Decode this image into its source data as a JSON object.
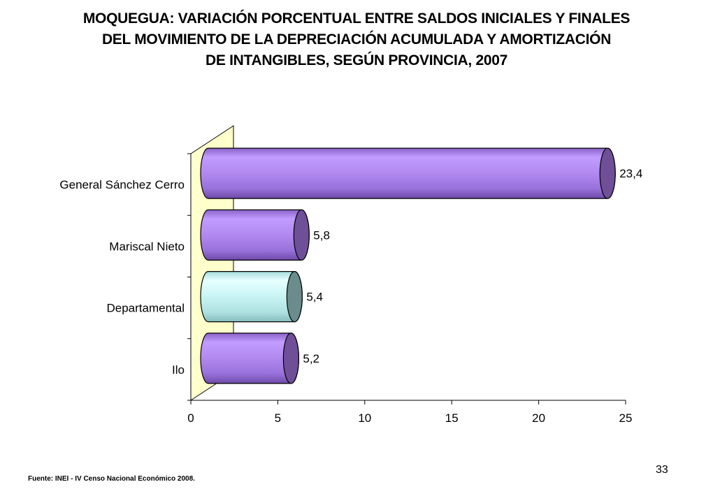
{
  "title_lines": [
    "MOQUEGUA: VARIACIÓN PORCENTUAL ENTRE SALDOS INICIALES Y FINALES",
    "DEL MOVIMIENTO DE LA DEPRECIACIÓN ACUMULADA Y AMORTIZACIÓN",
    "DE INTANGIBLES, SEGÚN PROVINCIA, 2007"
  ],
  "source": "Fuente: INEI - IV Censo Nacional Económico 2008.",
  "page_number": "33",
  "chart_data": {
    "type": "bar",
    "orientation": "horizontal",
    "style": "3d-cylinder",
    "categories": [
      "General Sánchez Cerro",
      "Mariscal Nieto",
      "Departamental",
      "Ilo"
    ],
    "values": [
      23.4,
      5.8,
      5.4,
      5.2
    ],
    "data_labels": [
      "23,4",
      "5,8",
      "5,4",
      "5,2"
    ],
    "xlim": [
      0,
      25
    ],
    "xticks": [
      0,
      5,
      10,
      15,
      20,
      25
    ],
    "grid": false,
    "colors": {
      "General Sánchez Cerro": "#b48cf2",
      "Mariscal Nieto": "#b48cf2",
      "Departamental": "#c8f4f4",
      "Ilo": "#b48cf2"
    },
    "back_wall_color": "#ffffcc"
  }
}
